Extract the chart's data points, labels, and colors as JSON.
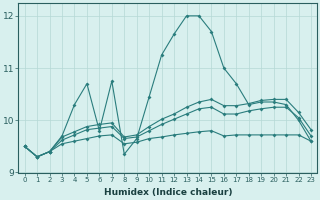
{
  "xlabel": "Humidex (Indice chaleur)",
  "x_values": [
    0,
    1,
    2,
    3,
    4,
    5,
    6,
    7,
    8,
    9,
    10,
    11,
    12,
    13,
    14,
    15,
    16,
    17,
    18,
    19,
    20,
    21,
    22,
    23
  ],
  "line1": [
    9.5,
    9.3,
    9.4,
    9.7,
    10.3,
    10.7,
    9.8,
    10.75,
    9.35,
    9.65,
    10.45,
    11.25,
    11.65,
    12.0,
    12.0,
    11.7,
    11.0,
    10.7,
    10.3,
    10.35,
    10.35,
    10.3,
    10.0,
    9.6
  ],
  "line2": [
    9.5,
    9.3,
    9.4,
    9.55,
    9.6,
    9.65,
    9.7,
    9.72,
    9.55,
    9.58,
    9.65,
    9.68,
    9.72,
    9.75,
    9.78,
    9.8,
    9.7,
    9.72,
    9.72,
    9.72,
    9.72,
    9.72,
    9.72,
    9.6
  ],
  "line3": [
    9.5,
    9.3,
    9.4,
    9.62,
    9.72,
    9.82,
    9.85,
    9.88,
    9.65,
    9.68,
    9.8,
    9.92,
    10.02,
    10.12,
    10.22,
    10.25,
    10.12,
    10.12,
    10.18,
    10.22,
    10.25,
    10.25,
    10.05,
    9.7
  ],
  "line4": [
    9.5,
    9.3,
    9.4,
    9.68,
    9.78,
    9.88,
    9.92,
    9.95,
    9.68,
    9.72,
    9.88,
    10.02,
    10.12,
    10.25,
    10.35,
    10.4,
    10.28,
    10.28,
    10.32,
    10.38,
    10.4,
    10.4,
    10.15,
    9.82
  ],
  "line_color": "#2a7d7d",
  "bg_color": "#d8f0ee",
  "grid_color": "#b5d9d5",
  "axis_color": "#2a5f5f",
  "text_color": "#1a4040",
  "ylim": [
    9.0,
    12.25
  ],
  "yticks": [
    9,
    10,
    11,
    12
  ],
  "xlim": [
    -0.5,
    23.5
  ]
}
